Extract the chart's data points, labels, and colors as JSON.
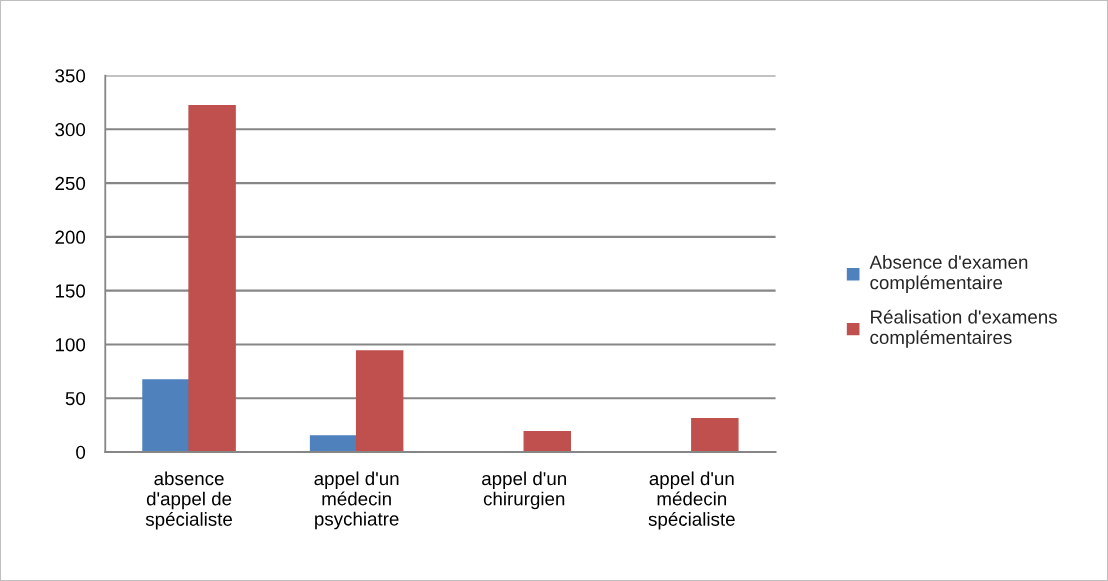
{
  "chart_data": {
    "type": "bar",
    "categories": [
      "absence d'appel de spécialiste",
      "appel d'un médecin psychiatre",
      "appel d'un chirurgien",
      "appel d'un médecin spécialiste"
    ],
    "series": [
      {
        "name": "Absence d'examen complémentaire",
        "color": "#4f81bd",
        "values": [
          67,
          15,
          0,
          0
        ]
      },
      {
        "name": "Réalisation d'examens complémentaires",
        "color": "#c0504d",
        "values": [
          322,
          94,
          19,
          31
        ]
      }
    ],
    "ylim": [
      0,
      350
    ],
    "yticks": [
      0,
      50,
      100,
      150,
      200,
      250,
      300,
      350
    ],
    "grid": "y",
    "legend": "right"
  }
}
